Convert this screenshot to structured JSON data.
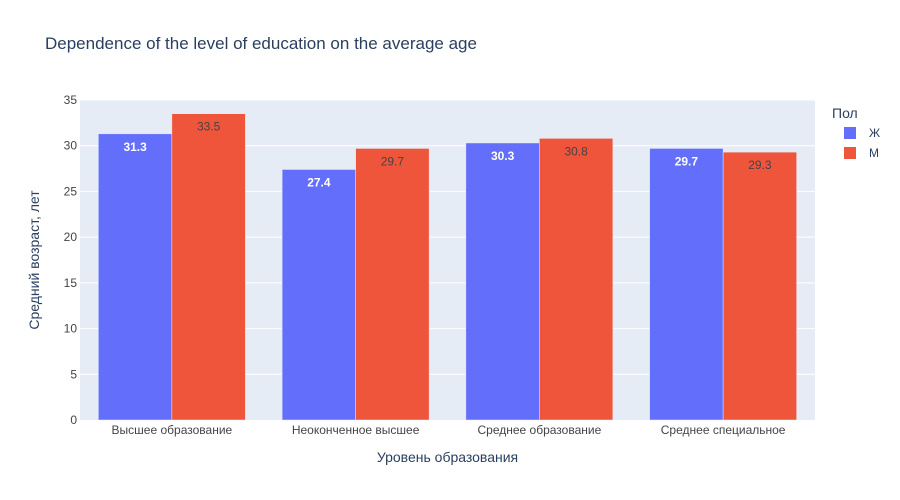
{
  "chart_data": {
    "type": "bar",
    "title": "Dependence of the level of education on the average age",
    "xlabel": "Уровень образования",
    "ylabel": "Средний возраст, лет",
    "categories": [
      "Высшее образование",
      "Неоконченное высшее",
      "Среднее образование",
      "Среднее специальное"
    ],
    "series": [
      {
        "name": "Ж",
        "color": "#636efa",
        "values": [
          31.3,
          27.4,
          30.3,
          29.7
        ],
        "labels": [
          "31.3",
          "27.4",
          "30.3",
          "29.7"
        ]
      },
      {
        "name": "М",
        "color": "#ef553b",
        "values": [
          33.5,
          29.7,
          30.8,
          29.3
        ],
        "labels": [
          "33.5",
          "29.7",
          "30.8",
          "29.3"
        ]
      }
    ],
    "ylim": [
      0,
      35
    ],
    "yticks": [
      0,
      5,
      10,
      15,
      20,
      25,
      30,
      35
    ],
    "legend_title": "Пол",
    "legend_position": "top-right",
    "grid": true,
    "plot_background": "#e5ecf6"
  }
}
